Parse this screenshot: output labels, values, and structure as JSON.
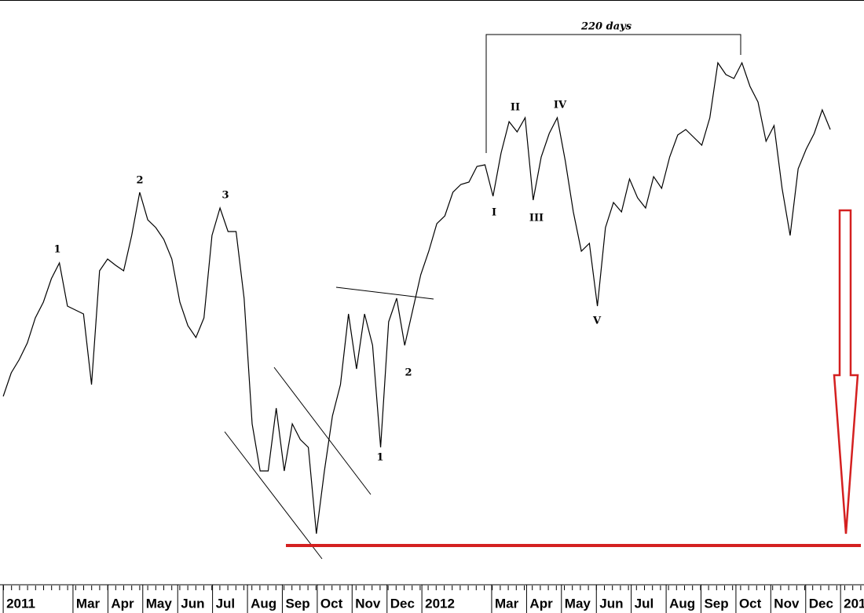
{
  "chart_data": {
    "type": "line",
    "series": [
      {
        "color": "#000000",
        "values": [
          235,
          265,
          282,
          303,
          335,
          355,
          385,
          405,
          350,
          345,
          340,
          250,
          395,
          410,
          402,
          395,
          440,
          495,
          460,
          450,
          435,
          410,
          355,
          325,
          310,
          335,
          440,
          475,
          445,
          445,
          360,
          200,
          140,
          140,
          220,
          140,
          200,
          180,
          170,
          60,
          140,
          210,
          250,
          340,
          270,
          340,
          300,
          170,
          330,
          360,
          300,
          345,
          390,
          420,
          455,
          465,
          495,
          505,
          508,
          528,
          530,
          490,
          545,
          585,
          572,
          590,
          485,
          540,
          570,
          590,
          535,
          470,
          420,
          430,
          350,
          450,
          482,
          470,
          512,
          488,
          475,
          515,
          500,
          540,
          568,
          575,
          565,
          555,
          590,
          660,
          645,
          640,
          660,
          630,
          610,
          560,
          580,
          500,
          440,
          525,
          550,
          570,
          600,
          575
        ]
      }
    ],
    "xlim": [
      -0.4,
      107.2
    ],
    "ylim": [
      0,
      740
    ],
    "xticks": [
      {
        "value": 0,
        "label": "2011"
      },
      {
        "value": 8.69,
        "label": "Mar"
      },
      {
        "value": 13.04,
        "label": "Apr"
      },
      {
        "value": 17.38,
        "label": "May"
      },
      {
        "value": 21.73,
        "label": "Jun"
      },
      {
        "value": 26.07,
        "label": "Jul"
      },
      {
        "value": 30.42,
        "label": "Aug"
      },
      {
        "value": 34.76,
        "label": "Sep"
      },
      {
        "value": 39.11,
        "label": "Oct"
      },
      {
        "value": 43.45,
        "label": "Nov"
      },
      {
        "value": 47.8,
        "label": "Dec"
      },
      {
        "value": 52.14,
        "label": "2012"
      },
      {
        "value": 60.83,
        "label": "Mar"
      },
      {
        "value": 65.18,
        "label": "Apr"
      },
      {
        "value": 69.52,
        "label": "May"
      },
      {
        "value": 73.87,
        "label": "Jun"
      },
      {
        "value": 78.21,
        "label": "Jul"
      },
      {
        "value": 82.56,
        "label": "Aug"
      },
      {
        "value": 86.9,
        "label": "Sep"
      },
      {
        "value": 91.25,
        "label": "Oct"
      },
      {
        "value": 95.59,
        "label": "Nov"
      },
      {
        "value": 99.94,
        "label": "Dec"
      },
      {
        "value": 104.28,
        "label": "201"
      }
    ],
    "annotations": [
      "1",
      "2",
      "3",
      "2",
      "1",
      "I",
      "II",
      "III",
      "IV",
      "V",
      "220 days"
    ]
  }
}
